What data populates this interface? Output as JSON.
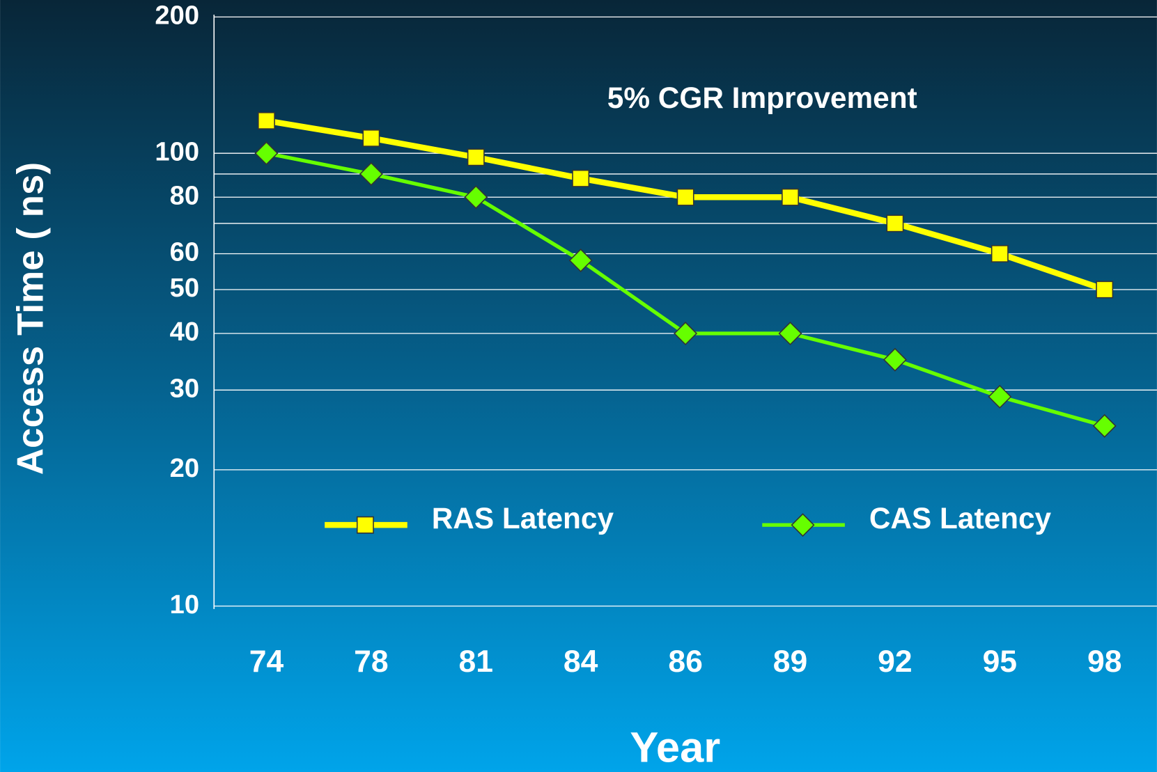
{
  "chart_data": {
    "type": "line",
    "annotation": "5% CGR Improvement",
    "x_label": "Year",
    "y_label": "Access Time ( ns)",
    "categories": [
      "74",
      "78",
      "81",
      "84",
      "86",
      "89",
      "92",
      "95",
      "98"
    ],
    "series": [
      {
        "name": "RAS Latency",
        "color": "#ffff00",
        "marker": "square",
        "values": [
          118,
          108,
          98,
          88,
          80,
          80,
          70,
          60,
          50
        ]
      },
      {
        "name": "CAS Latency",
        "color": "#66ff00",
        "marker": "diamond",
        "values": [
          100,
          90,
          80,
          58,
          40,
          40,
          35,
          29,
          25
        ]
      }
    ],
    "ylim": [
      10,
      200
    ],
    "yticks": [
      10,
      20,
      30,
      40,
      50,
      60,
      80,
      100,
      200
    ],
    "minor_grid": [
      70,
      90
    ],
    "log_y": true,
    "grid": true,
    "legend": "lower center"
  }
}
